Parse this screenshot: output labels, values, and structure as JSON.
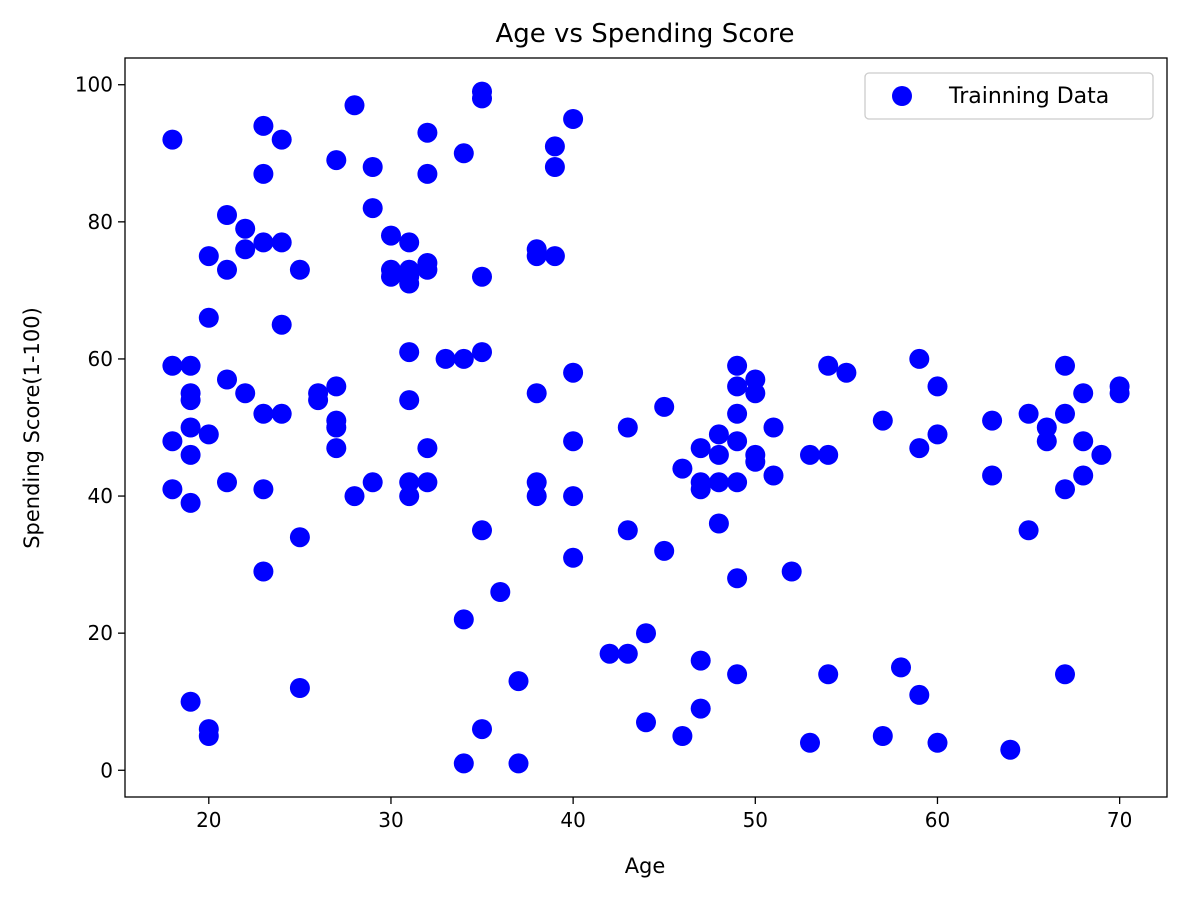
{
  "chart_data": {
    "type": "scatter",
    "title": "Age vs Spending Score",
    "xlabel": "Age",
    "ylabel": "Spending Score(1-100)",
    "xlim": [
      15.4,
      72.6
    ],
    "ylim": [
      -3.9,
      103.9
    ],
    "xticks": [
      20,
      30,
      40,
      50,
      60,
      70
    ],
    "yticks": [
      0,
      20,
      40,
      60,
      80,
      100
    ],
    "grid": false,
    "legend": {
      "position": "top-right",
      "entries": [
        "Trainning Data"
      ]
    },
    "series": [
      {
        "name": "Trainning Data",
        "color": "#0000ff",
        "points": [
          [
            18,
            92
          ],
          [
            18,
            59
          ],
          [
            18,
            48
          ],
          [
            18,
            41
          ],
          [
            19,
            59
          ],
          [
            19,
            55
          ],
          [
            19,
            54
          ],
          [
            19,
            50
          ],
          [
            19,
            46
          ],
          [
            19,
            39
          ],
          [
            19,
            10
          ],
          [
            20,
            75
          ],
          [
            20,
            66
          ],
          [
            20,
            49
          ],
          [
            20,
            6
          ],
          [
            20,
            5
          ],
          [
            21,
            81
          ],
          [
            21,
            73
          ],
          [
            21,
            57
          ],
          [
            21,
            42
          ],
          [
            22,
            79
          ],
          [
            22,
            76
          ],
          [
            22,
            55
          ],
          [
            23,
            94
          ],
          [
            23,
            87
          ],
          [
            23,
            77
          ],
          [
            23,
            52
          ],
          [
            23,
            41
          ],
          [
            23,
            29
          ],
          [
            24,
            92
          ],
          [
            24,
            77
          ],
          [
            24,
            65
          ],
          [
            24,
            52
          ],
          [
            25,
            73
          ],
          [
            25,
            34
          ],
          [
            25,
            12
          ],
          [
            26,
            55
          ],
          [
            26,
            54
          ],
          [
            27,
            89
          ],
          [
            27,
            56
          ],
          [
            27,
            51
          ],
          [
            27,
            50
          ],
          [
            27,
            47
          ],
          [
            28,
            97
          ],
          [
            28,
            40
          ],
          [
            29,
            88
          ],
          [
            29,
            82
          ],
          [
            29,
            42
          ],
          [
            30,
            78
          ],
          [
            30,
            73
          ],
          [
            30,
            72
          ],
          [
            31,
            77
          ],
          [
            31,
            73
          ],
          [
            31,
            72
          ],
          [
            31,
            71
          ],
          [
            31,
            61
          ],
          [
            31,
            54
          ],
          [
            31,
            42
          ],
          [
            31,
            40
          ],
          [
            32,
            93
          ],
          [
            32,
            87
          ],
          [
            32,
            74
          ],
          [
            32,
            73
          ],
          [
            32,
            47
          ],
          [
            32,
            42
          ],
          [
            33,
            60
          ],
          [
            34,
            90
          ],
          [
            34,
            60
          ],
          [
            34,
            22
          ],
          [
            34,
            1
          ],
          [
            35,
            99
          ],
          [
            35,
            98
          ],
          [
            35,
            72
          ],
          [
            35,
            61
          ],
          [
            35,
            35
          ],
          [
            35,
            6
          ],
          [
            36,
            26
          ],
          [
            37,
            13
          ],
          [
            37,
            1
          ],
          [
            38,
            76
          ],
          [
            38,
            75
          ],
          [
            38,
            55
          ],
          [
            38,
            42
          ],
          [
            38,
            40
          ],
          [
            39,
            91
          ],
          [
            39,
            88
          ],
          [
            39,
            75
          ],
          [
            40,
            95
          ],
          [
            40,
            58
          ],
          [
            40,
            48
          ],
          [
            40,
            40
          ],
          [
            40,
            31
          ],
          [
            42,
            17
          ],
          [
            43,
            50
          ],
          [
            43,
            35
          ],
          [
            43,
            17
          ],
          [
            44,
            20
          ],
          [
            44,
            7
          ],
          [
            45,
            53
          ],
          [
            45,
            32
          ],
          [
            46,
            44
          ],
          [
            46,
            5
          ],
          [
            47,
            47
          ],
          [
            47,
            42
          ],
          [
            47,
            41
          ],
          [
            47,
            16
          ],
          [
            47,
            9
          ],
          [
            48,
            49
          ],
          [
            48,
            46
          ],
          [
            48,
            42
          ],
          [
            48,
            36
          ],
          [
            49,
            59
          ],
          [
            49,
            56
          ],
          [
            49,
            52
          ],
          [
            49,
            48
          ],
          [
            49,
            42
          ],
          [
            49,
            28
          ],
          [
            49,
            14
          ],
          [
            50,
            57
          ],
          [
            50,
            55
          ],
          [
            50,
            46
          ],
          [
            50,
            45
          ],
          [
            51,
            50
          ],
          [
            51,
            43
          ],
          [
            52,
            29
          ],
          [
            53,
            46
          ],
          [
            53,
            4
          ],
          [
            54,
            59
          ],
          [
            54,
            46
          ],
          [
            54,
            14
          ],
          [
            55,
            58
          ],
          [
            57,
            51
          ],
          [
            57,
            5
          ],
          [
            58,
            15
          ],
          [
            59,
            60
          ],
          [
            59,
            47
          ],
          [
            59,
            11
          ],
          [
            60,
            56
          ],
          [
            60,
            49
          ],
          [
            60,
            4
          ],
          [
            63,
            51
          ],
          [
            63,
            43
          ],
          [
            64,
            3
          ],
          [
            65,
            52
          ],
          [
            65,
            35
          ],
          [
            66,
            50
          ],
          [
            66,
            48
          ],
          [
            67,
            59
          ],
          [
            67,
            52
          ],
          [
            67,
            41
          ],
          [
            67,
            14
          ],
          [
            68,
            55
          ],
          [
            68,
            48
          ],
          [
            68,
            43
          ],
          [
            69,
            46
          ],
          [
            70,
            56
          ],
          [
            70,
            55
          ]
        ]
      }
    ]
  }
}
